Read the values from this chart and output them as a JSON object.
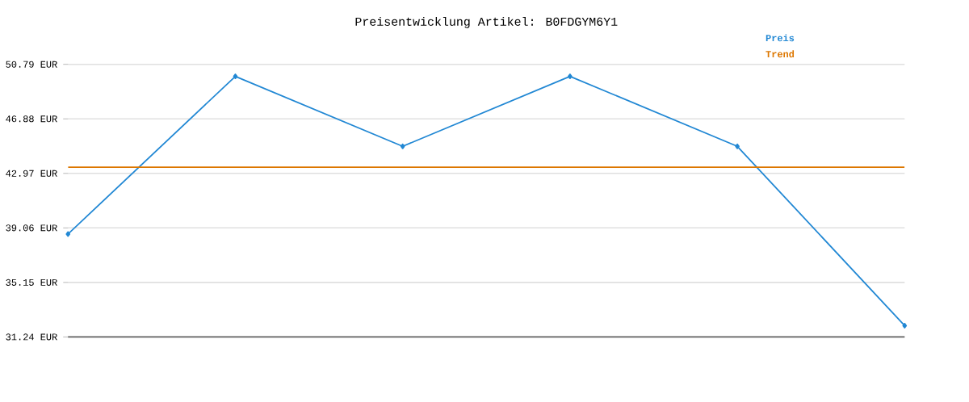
{
  "chart_data": {
    "type": "line",
    "title": "Preisentwicklung Artikel: B0FDGYM6Y1",
    "categories": [
      null,
      null,
      null,
      null,
      null,
      null
    ],
    "series": [
      {
        "name": "Preis",
        "color": "#2288d4",
        "values": [
          38.62,
          49.93,
          44.91,
          49.93,
          44.91,
          32.05
        ],
        "marker": "diamond"
      },
      {
        "name": "Trend",
        "color": "#dd7700",
        "values": [
          43.41,
          43.41,
          43.41,
          43.41,
          43.41,
          43.41
        ],
        "marker": "none"
      }
    ],
    "ylim": [
      31.24,
      50.79
    ],
    "yticks": [
      {
        "value": 31.24,
        "label": "31.24 EUR"
      },
      {
        "value": 35.15,
        "label": "35.15 EUR"
      },
      {
        "value": 39.06,
        "label": "39.06 EUR"
      },
      {
        "value": 42.97,
        "label": "42.97 EUR"
      },
      {
        "value": 46.88,
        "label": "46.88 EUR"
      },
      {
        "value": 50.79,
        "label": "50.79 EUR"
      }
    ],
    "grid": "y",
    "legend": "top right",
    "tick_labels": "y"
  }
}
